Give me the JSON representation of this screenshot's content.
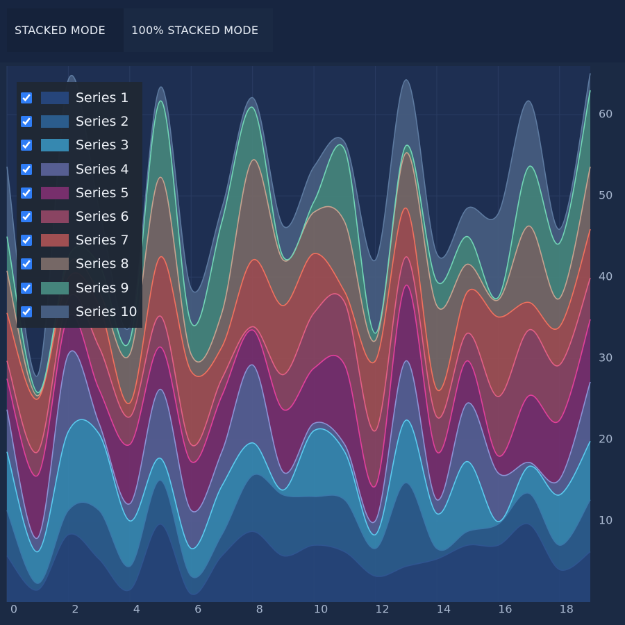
{
  "toolbar": {
    "buttons": [
      "STACKED MODE",
      "100% STACKED MODE"
    ]
  },
  "chart_data": {
    "type": "stacked_area",
    "legend": "top-left",
    "grid": true,
    "x": [
      0,
      1,
      2,
      3,
      4,
      5,
      6,
      7,
      8,
      9,
      10,
      11,
      12,
      13,
      14,
      15,
      16,
      17,
      18,
      19
    ],
    "xlim": [
      0,
      19
    ],
    "xticks": [
      0,
      2,
      4,
      6,
      8,
      10,
      12,
      14,
      16,
      18
    ],
    "ylim": [
      0,
      66
    ],
    "yticks": [
      10,
      20,
      30,
      40,
      50,
      60
    ],
    "series": [
      {
        "name": "Series 1",
        "color": "#26457a",
        "line": "#2f5590",
        "values": [
          5.7,
          1.5,
          8.3,
          5.3,
          1.5,
          9.6,
          1.0,
          5.7,
          8.7,
          5.7,
          7.0,
          6.2,
          3.2,
          4.4,
          5.3,
          7.0,
          7.0,
          9.6,
          4.0,
          6.2
        ]
      },
      {
        "name": "Series 2",
        "color": "#2b5c8c",
        "line": "#3a78aa",
        "values": [
          5.6,
          0.8,
          3.0,
          6.0,
          2.9,
          5.4,
          2.2,
          2.6,
          6.9,
          7.5,
          6.0,
          6.4,
          3.4,
          10.3,
          1.3,
          1.7,
          2.6,
          3.8,
          3.0,
          6.4
        ]
      },
      {
        "name": "Series 3",
        "color": "#3688b0",
        "line": "#5ccbef",
        "values": [
          7.2,
          3.9,
          9.7,
          9.4,
          5.6,
          2.7,
          3.4,
          6.0,
          4.0,
          0.6,
          8.1,
          5.9,
          1.7,
          7.7,
          4.3,
          8.6,
          0.3,
          3.3,
          6.2,
          7.2
        ]
      },
      {
        "name": "Series 4",
        "color": "#565e92",
        "line": "#8d93d6",
        "values": [
          5.2,
          1.7,
          9.5,
          1.3,
          2.1,
          8.5,
          4.7,
          4.2,
          9.6,
          2.2,
          0.9,
          0.9,
          1.7,
          7.3,
          1.7,
          7.2,
          6.0,
          0.5,
          1.9,
          7.3
        ]
      },
      {
        "name": "Series 5",
        "color": "#772f6c",
        "line": "#e2409c",
        "values": [
          3.8,
          7.7,
          4.7,
          4.2,
          7.3,
          5.2,
          6.0,
          6.9,
          4.3,
          7.7,
          6.8,
          9.8,
          4.3,
          9.3,
          5.9,
          5.2,
          2.1,
          8.2,
          7.3,
          7.7
        ]
      },
      {
        "name": "Series 6",
        "color": "#8a4462",
        "line": "#e45f86",
        "values": [
          2.2,
          2.9,
          2.2,
          5.2,
          3.4,
          3.8,
          2.1,
          2.1,
          0.4,
          4.3,
          6.8,
          7.7,
          6.8,
          3.5,
          4.3,
          3.4,
          7.3,
          8.1,
          6.8,
          5.1
        ]
      },
      {
        "name": "Series 7",
        "color": "#a04f52",
        "line": "#f2715e",
        "values": [
          5.9,
          6.5,
          2.5,
          5.1,
          1.7,
          7.3,
          9.0,
          3.9,
          8.2,
          8.5,
          7.3,
          1.3,
          8.6,
          6.0,
          3.4,
          5.1,
          9.8,
          3.4,
          4.7,
          6.0
        ]
      },
      {
        "name": "Series 8",
        "color": "#766866",
        "line": "#c8a390",
        "values": [
          5.2,
          0.4,
          1.7,
          1.7,
          6.0,
          9.8,
          2.1,
          4.2,
          12.3,
          5.6,
          5.1,
          8.6,
          2.5,
          6.8,
          10.3,
          3.4,
          2.1,
          9.4,
          3.5,
          7.7
        ]
      },
      {
        "name": "Series 9",
        "color": "#45857c",
        "line": "#72d6b6",
        "values": [
          4.2,
          0.4,
          0.9,
          3.4,
          1.7,
          9.4,
          3.9,
          11.2,
          6.5,
          0.4,
          1.3,
          8.9,
          0.9,
          0.9,
          3.0,
          3.4,
          0.3,
          7.3,
          6.8,
          9.4
        ]
      },
      {
        "name": "Series 10",
        "color": "#465d80",
        "line": "#5d7aa0",
        "values": [
          8.6,
          2.1,
          21.8,
          6.9,
          1.7,
          1.7,
          4.2,
          1.7,
          1.2,
          3.8,
          4.3,
          0.9,
          9.0,
          8.1,
          3.4,
          3.5,
          10.3,
          8.1,
          1.7,
          2.1
        ]
      }
    ]
  }
}
